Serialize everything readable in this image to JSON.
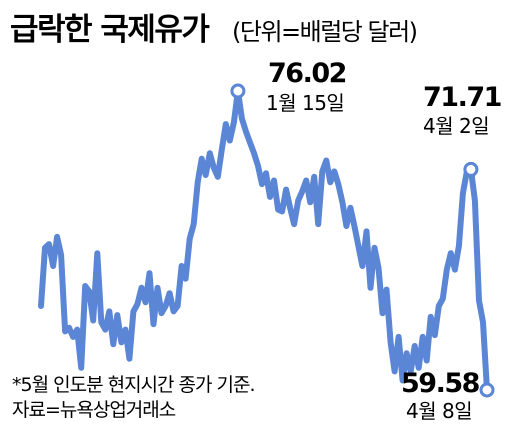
{
  "chart_data": {
    "type": "line",
    "title": "급락한 국제유가",
    "unit": "(단위=배럴당 달러)",
    "color": "#5b86d6",
    "ylim": [
      55,
      80
    ],
    "series": [
      {
        "values": [
          64.2,
          67.4,
          67.6,
          66.4,
          68.0,
          67.0,
          62.8,
          63.0,
          62.5,
          62.9,
          60.8,
          65.3,
          65.0,
          63.4,
          67.1,
          63.3,
          62.9,
          63.9,
          62.1,
          63.7,
          62.2,
          62.9,
          61.3,
          63.9,
          64.3,
          65.2,
          64.4,
          66.0,
          63.2,
          65.2,
          63.8,
          64.2,
          64.9,
          63.9,
          64.2,
          66.4,
          65.7,
          67.9,
          68.7,
          71.0,
          72.3,
          71.4,
          72.6,
          71.8,
          71.3,
          72.8,
          74.2,
          73.3,
          74.3,
          76.02,
          74.5,
          73.8,
          73.2,
          72.6,
          71.9,
          70.9,
          71.5,
          70.2,
          71.1,
          69.5,
          69.4,
          70.6,
          69.6,
          68.7,
          70.0,
          70.5,
          71.1,
          69.9,
          71.3,
          68.7,
          71.6,
          72.2,
          71.0,
          71.6,
          70.9,
          69.9,
          68.6,
          69.6,
          68.6,
          67.5,
          66.4,
          68.3,
          65.2,
          67.4,
          66.3,
          63.8,
          65.1,
          62.2,
          60.6,
          62.5,
          60.1,
          61.6,
          60.6,
          62.0,
          60.8,
          62.5,
          61.2,
          63.6,
          62.6,
          64.2,
          64.6,
          66.2,
          67.1,
          66.2,
          67.5,
          70.4,
          71.6,
          71.71,
          70.0,
          64.5,
          63.3,
          59.58
        ]
      }
    ],
    "annotations": [
      {
        "index": 49,
        "value": "76.02",
        "date": "1월 15일"
      },
      {
        "index": 107,
        "value": "71.71",
        "date": "4월 2일"
      },
      {
        "index": 111,
        "value": "59.58",
        "date": "4월 8일"
      }
    ],
    "notes": [
      "*5월 인도분 현지시간 종가 기준.",
      "자료=뉴욕상업거래소"
    ]
  }
}
